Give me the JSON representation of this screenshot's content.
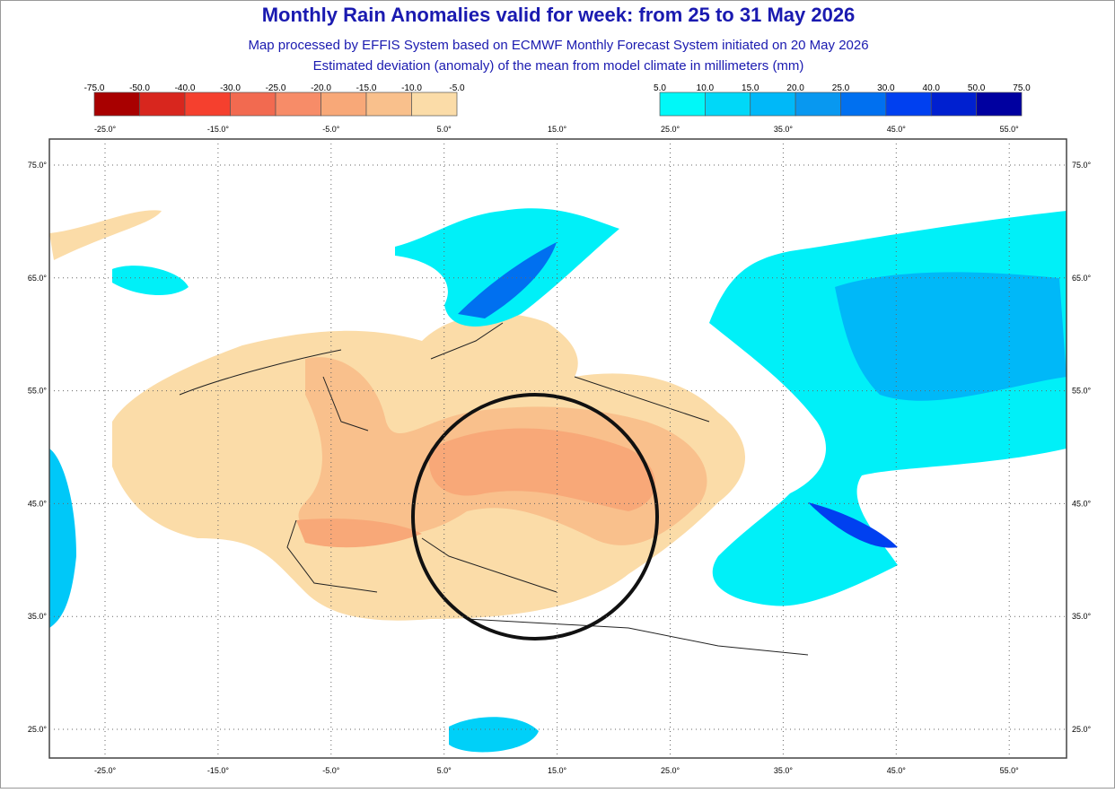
{
  "header": {
    "title": "Monthly Rain Anomalies valid for week: from 25 to 31 May 2026",
    "subtitle": "Map processed by EFFIS System based on ECMWF Monthly Forecast System initiated on 20 May 2026",
    "description": "Estimated deviation (anomaly) of the mean from model climate in millimeters (mm)"
  },
  "colorbar": {
    "negative": [
      "-75.0",
      "-50.0",
      "-40.0",
      "-30.0",
      "-25.0",
      "-20.0",
      "-15.0",
      "-10.0",
      "-5.0"
    ],
    "positive": [
      "5.0",
      "10.0",
      "15.0",
      "20.0",
      "25.0",
      "30.0",
      "40.0",
      "50.0",
      "75.0"
    ]
  },
  "map": {
    "lon_labels": [
      "-25.0°",
      "-15.0°",
      "-5.0°",
      "5.0°",
      "15.0°",
      "25.0°",
      "35.0°",
      "45.0°",
      "55.0°"
    ],
    "lat_labels": [
      "75.0°",
      "65.0°",
      "55.0°",
      "45.0°",
      "35.0°",
      "25.0°"
    ]
  }
}
